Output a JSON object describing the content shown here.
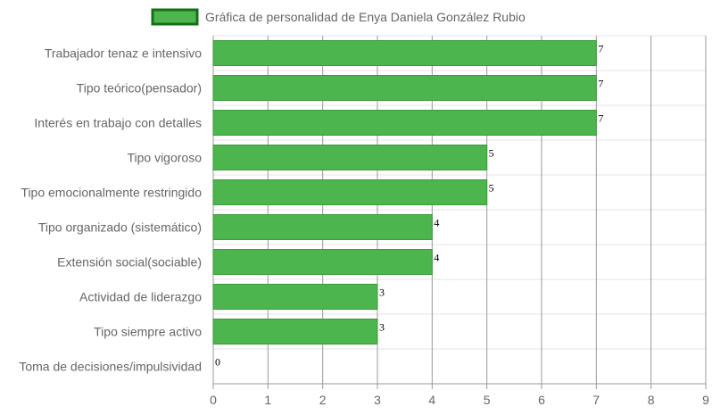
{
  "chart_data": {
    "type": "bar",
    "orientation": "horizontal",
    "categories": [
      "Trabajador tenaz e intensivo",
      "Tipo teórico(pensador)",
      "Interés en trabajo con detalles",
      "Tipo vigoroso",
      "Tipo emocionalmente restringido",
      "Tipo organizado (sistemático)",
      "Extensión social(sociable)",
      "Actividad de liderazgo",
      "Tipo siempre activo",
      "Toma de decisiones/impulsividad"
    ],
    "series": [
      {
        "name": "Gráfica de personalidad de Enya Daniela González Rubio",
        "values": [
          7,
          7,
          7,
          5,
          5,
          4,
          4,
          3,
          3,
          0
        ]
      }
    ],
    "xlim": [
      0,
      9
    ],
    "xticks": [
      0,
      1,
      2,
      3,
      4,
      5,
      6,
      7,
      8,
      9
    ],
    "grid": true,
    "legend_position": "top-center",
    "colors": {
      "bar_fill": "#4db54d",
      "bar_stroke": "#3a9a3a",
      "legend_fill": "#4db54d",
      "legend_stroke": "#157015",
      "vertical_grid": "#999999",
      "horizontal_grid": "#e6e6e6"
    }
  }
}
